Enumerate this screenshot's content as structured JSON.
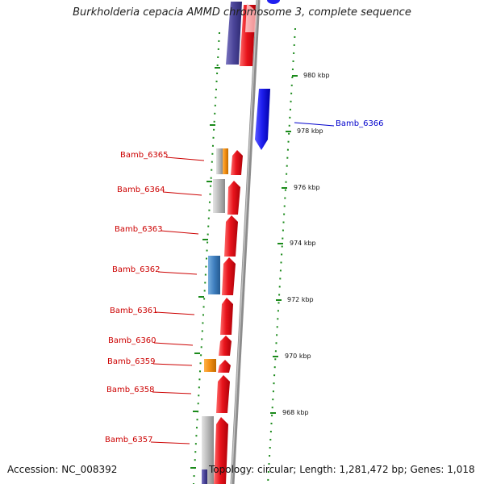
{
  "title": "Burkholderia cepacia AMMD chromosome 3, complete sequence",
  "footer": {
    "accession": "Accession: NC_008392",
    "topology": "Topology: circular; Length: 1,281,472 bp; Genes: 1,018"
  },
  "colors": {
    "forward": "#e8141c",
    "reverse": "#1f1ff0",
    "orange": "#f08c10",
    "steel": "#3f7fbf",
    "gray": "#b8b8b8",
    "tick": "#1a8a1a",
    "label_red": "#cc0000",
    "label_blue": "#0000cc"
  },
  "left_labels": [
    {
      "text": "Bamb_6365"
    },
    {
      "text": "Bamb_6364"
    },
    {
      "text": "Bamb_6363"
    },
    {
      "text": "Bamb_6362"
    },
    {
      "text": "Bamb_6361"
    },
    {
      "text": "Bamb_6360"
    },
    {
      "text": "Bamb_6359"
    },
    {
      "text": "Bamb_6358"
    },
    {
      "text": "Bamb_6357"
    }
  ],
  "right_labels": [
    {
      "text": "Bamb_6366"
    }
  ],
  "kbp_labels": [
    "980 kbp",
    "978 kbp",
    "976 kbp",
    "974 kbp",
    "972 kbp",
    "970 kbp",
    "968 kbp"
  ]
}
